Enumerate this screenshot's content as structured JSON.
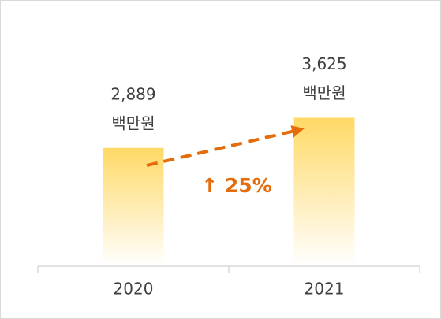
{
  "chart_data": {
    "type": "bar",
    "categories": [
      "2020",
      "2021"
    ],
    "values": [
      2889,
      3625
    ],
    "value_labels": [
      "2,889",
      "3,625"
    ],
    "unit_label": "백만원",
    "annotation": "↑ 25%",
    "ylim": [
      0,
      5000
    ],
    "color": "#ffd966",
    "arrow_color": "#e46c0a"
  }
}
